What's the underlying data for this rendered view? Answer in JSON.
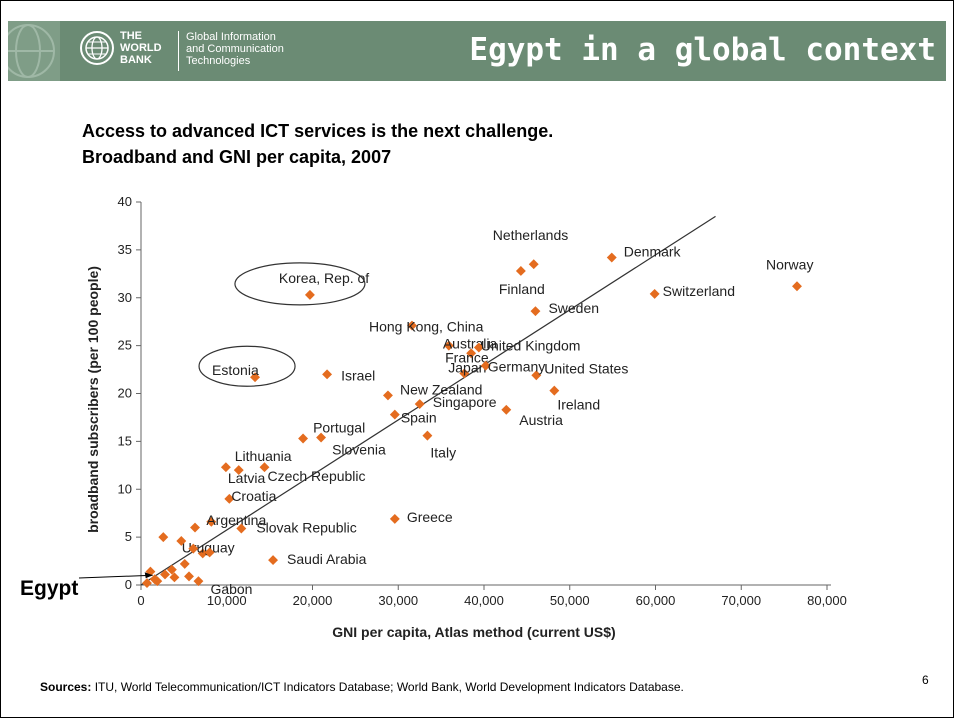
{
  "header": {
    "org_line1": "THE",
    "org_line2": "WORLD",
    "org_line3": "BANK",
    "unit_line1": "Global Information",
    "unit_line2": "and Communication",
    "unit_line3": "Technologies",
    "title": "Egypt in a global context",
    "logo_icon": "world-bank-globe-icon",
    "colors": {
      "header": "#6b8b74",
      "marker": "#e46c1f"
    }
  },
  "subtitle_line1": "Access to advanced ICT services is the next challenge.",
  "subtitle_line2": "Broadband and GNI per capita, 2007",
  "callout": "Egypt",
  "sources_label": "Sources:",
  "sources_text": " ITU, World Telecommunication/ICT Indicators Database; World Bank, World Development Indicators Database.",
  "page_number": "6",
  "chart_data": {
    "type": "scatter",
    "xlabel": "GNI per capita, Atlas method (current US$)",
    "ylabel": "broadband subscribers (per 100 people)",
    "xlim": [
      0,
      80000
    ],
    "ylim": [
      0,
      40
    ],
    "xticks": [
      "0",
      "10,000",
      "20,000",
      "30,000",
      "40,000",
      "50,000",
      "60,000",
      "70,000",
      "80,000"
    ],
    "yticks": [
      "0",
      "5",
      "10",
      "15",
      "20",
      "25",
      "30",
      "35",
      "40"
    ],
    "trendline": [
      [
        0,
        0
      ],
      [
        67000,
        38.5
      ]
    ],
    "ellipsed": [
      "Korea, Rep. of",
      "Estonia"
    ],
    "points": [
      {
        "label": "Netherlands",
        "x": 45800,
        "y": 33.5
      },
      {
        "label": "Denmark",
        "x": 54900,
        "y": 34.2
      },
      {
        "label": "Norway",
        "x": 76500,
        "y": 31.2
      },
      {
        "label": "Finland",
        "x": 44300,
        "y": 32.8
      },
      {
        "label": "Switzerland",
        "x": 59900,
        "y": 30.4
      },
      {
        "label": "Sweden",
        "x": 46000,
        "y": 28.6
      },
      {
        "label": "Korea, Rep. of",
        "x": 19700,
        "y": 30.3
      },
      {
        "label": "Hong Kong, China",
        "x": 31600,
        "y": 27.1
      },
      {
        "label": "Australia",
        "x": 35900,
        "y": 25.0
      },
      {
        "label": "France",
        "x": 38500,
        "y": 24.2
      },
      {
        "label": "United Kingdom",
        "x": 39400,
        "y": 24.8
      },
      {
        "label": "Japan",
        "x": 37700,
        "y": 22.1
      },
      {
        "label": "United States",
        "x": 46100,
        "y": 21.9
      },
      {
        "label": "Germany",
        "x": 40200,
        "y": 22.9
      },
      {
        "label": "Estonia",
        "x": 13300,
        "y": 21.7
      },
      {
        "label": "Israel",
        "x": 21700,
        "y": 22.0
      },
      {
        "label": "New Zealand",
        "x": 28800,
        "y": 19.8
      },
      {
        "label": "Ireland",
        "x": 48200,
        "y": 20.3
      },
      {
        "label": "Singapore",
        "x": 32500,
        "y": 18.9
      },
      {
        "label": "Austria",
        "x": 42600,
        "y": 18.3
      },
      {
        "label": "Spain",
        "x": 29600,
        "y": 17.8
      },
      {
        "label": "Portugal",
        "x": 18900,
        "y": 15.3
      },
      {
        "label": "Slovenia",
        "x": 21000,
        "y": 15.4
      },
      {
        "label": "Italy",
        "x": 33400,
        "y": 15.6
      },
      {
        "label": "Lithuania",
        "x": 11400,
        "y": 12.0
      },
      {
        "label": "Czech Republic",
        "x": 14400,
        "y": 12.3
      },
      {
        "label": "Latvia",
        "x": 9900,
        "y": 12.3
      },
      {
        "label": "Croatia",
        "x": 10300,
        "y": 9.0
      },
      {
        "label": "Argentina",
        "x": 8200,
        "y": 6.6
      },
      {
        "label": "Slovak Republic",
        "x": 11700,
        "y": 5.9
      },
      {
        "label": "Greece",
        "x": 29600,
        "y": 6.9
      },
      {
        "label": "Uruguay",
        "x": 7200,
        "y": 3.3
      },
      {
        "label": "Saudi Arabia",
        "x": 15400,
        "y": 2.6
      },
      {
        "label": "Gabon",
        "x": 6700,
        "y": 0.4
      },
      {
        "label": "Egypt",
        "x": 1600,
        "y": 0.6
      },
      {
        "label": "",
        "x": 2600,
        "y": 5.0
      },
      {
        "label": "",
        "x": 6300,
        "y": 6.0
      },
      {
        "label": "",
        "x": 4700,
        "y": 4.6
      },
      {
        "label": "",
        "x": 6100,
        "y": 3.8
      },
      {
        "label": "",
        "x": 5100,
        "y": 2.2
      },
      {
        "label": "",
        "x": 3600,
        "y": 1.6
      },
      {
        "label": "",
        "x": 2800,
        "y": 1.1
      },
      {
        "label": "",
        "x": 3900,
        "y": 0.8
      },
      {
        "label": "",
        "x": 1900,
        "y": 0.4
      },
      {
        "label": "",
        "x": 1100,
        "y": 1.4
      },
      {
        "label": "",
        "x": 700,
        "y": 0.2
      },
      {
        "label": "",
        "x": 5600,
        "y": 0.9
      },
      {
        "label": "",
        "x": 8000,
        "y": 3.4
      }
    ]
  }
}
